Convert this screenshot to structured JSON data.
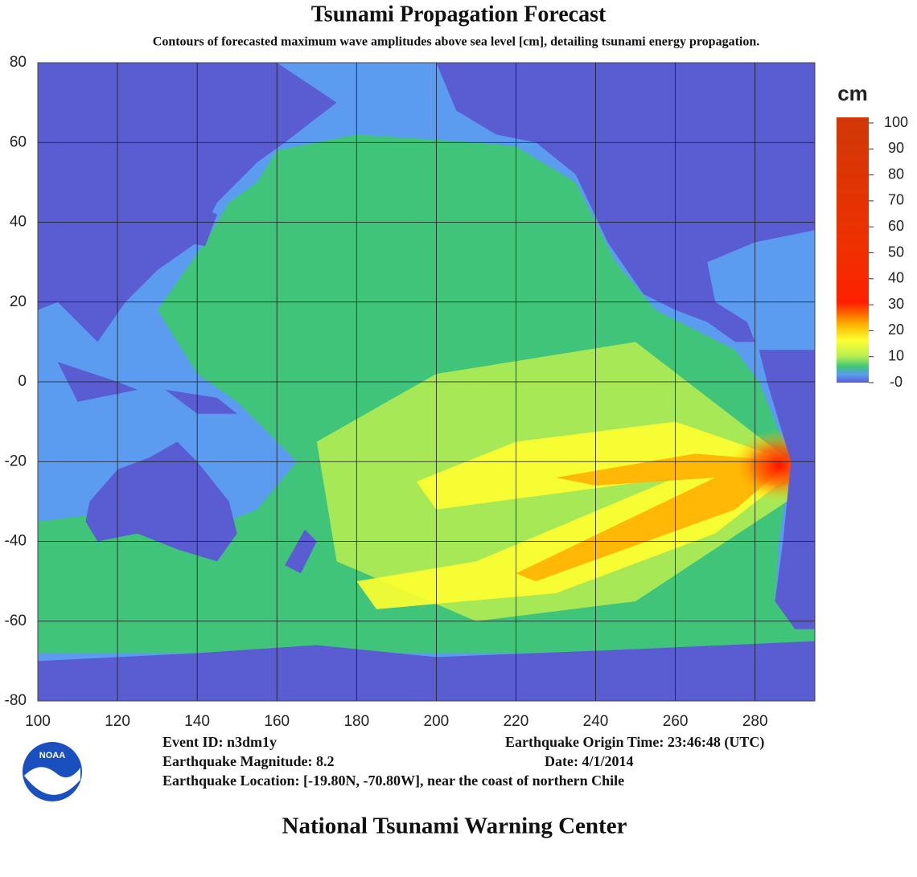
{
  "header": {
    "title": "Tsunami Propagation Forecast",
    "subtitle": "Contours of forecasted maximum wave amplitudes above sea level [cm], detailing tsunami energy propagation."
  },
  "map": {
    "xlim": [
      100,
      295
    ],
    "ylim": [
      -80,
      80
    ],
    "xticks": [
      100,
      120,
      140,
      160,
      180,
      200,
      220,
      240,
      260,
      280
    ],
    "yticks": [
      80,
      60,
      40,
      20,
      0,
      -20,
      -40,
      -60,
      -80
    ],
    "grid": true
  },
  "colorbar": {
    "unit": "cm",
    "lim": [
      0,
      100
    ],
    "ticks": [
      100,
      90,
      80,
      70,
      60,
      50,
      40,
      30,
      20,
      10,
      {
        "value": 0,
        "label": "-0"
      }
    ]
  },
  "event": {
    "id": "Event ID: n3dm1y",
    "magnitude": "Earthquake Magnitude: 8.2",
    "location": "Earthquake Location: [-19.80N, -70.80W], near the coast of northern Chile",
    "origin_time": "Earthquake Origin Time: 23:46:48 (UTC)",
    "date": "Date: 4/1/2014"
  },
  "logo": "NOAA",
  "footer": "National Tsunami Warning Center"
}
